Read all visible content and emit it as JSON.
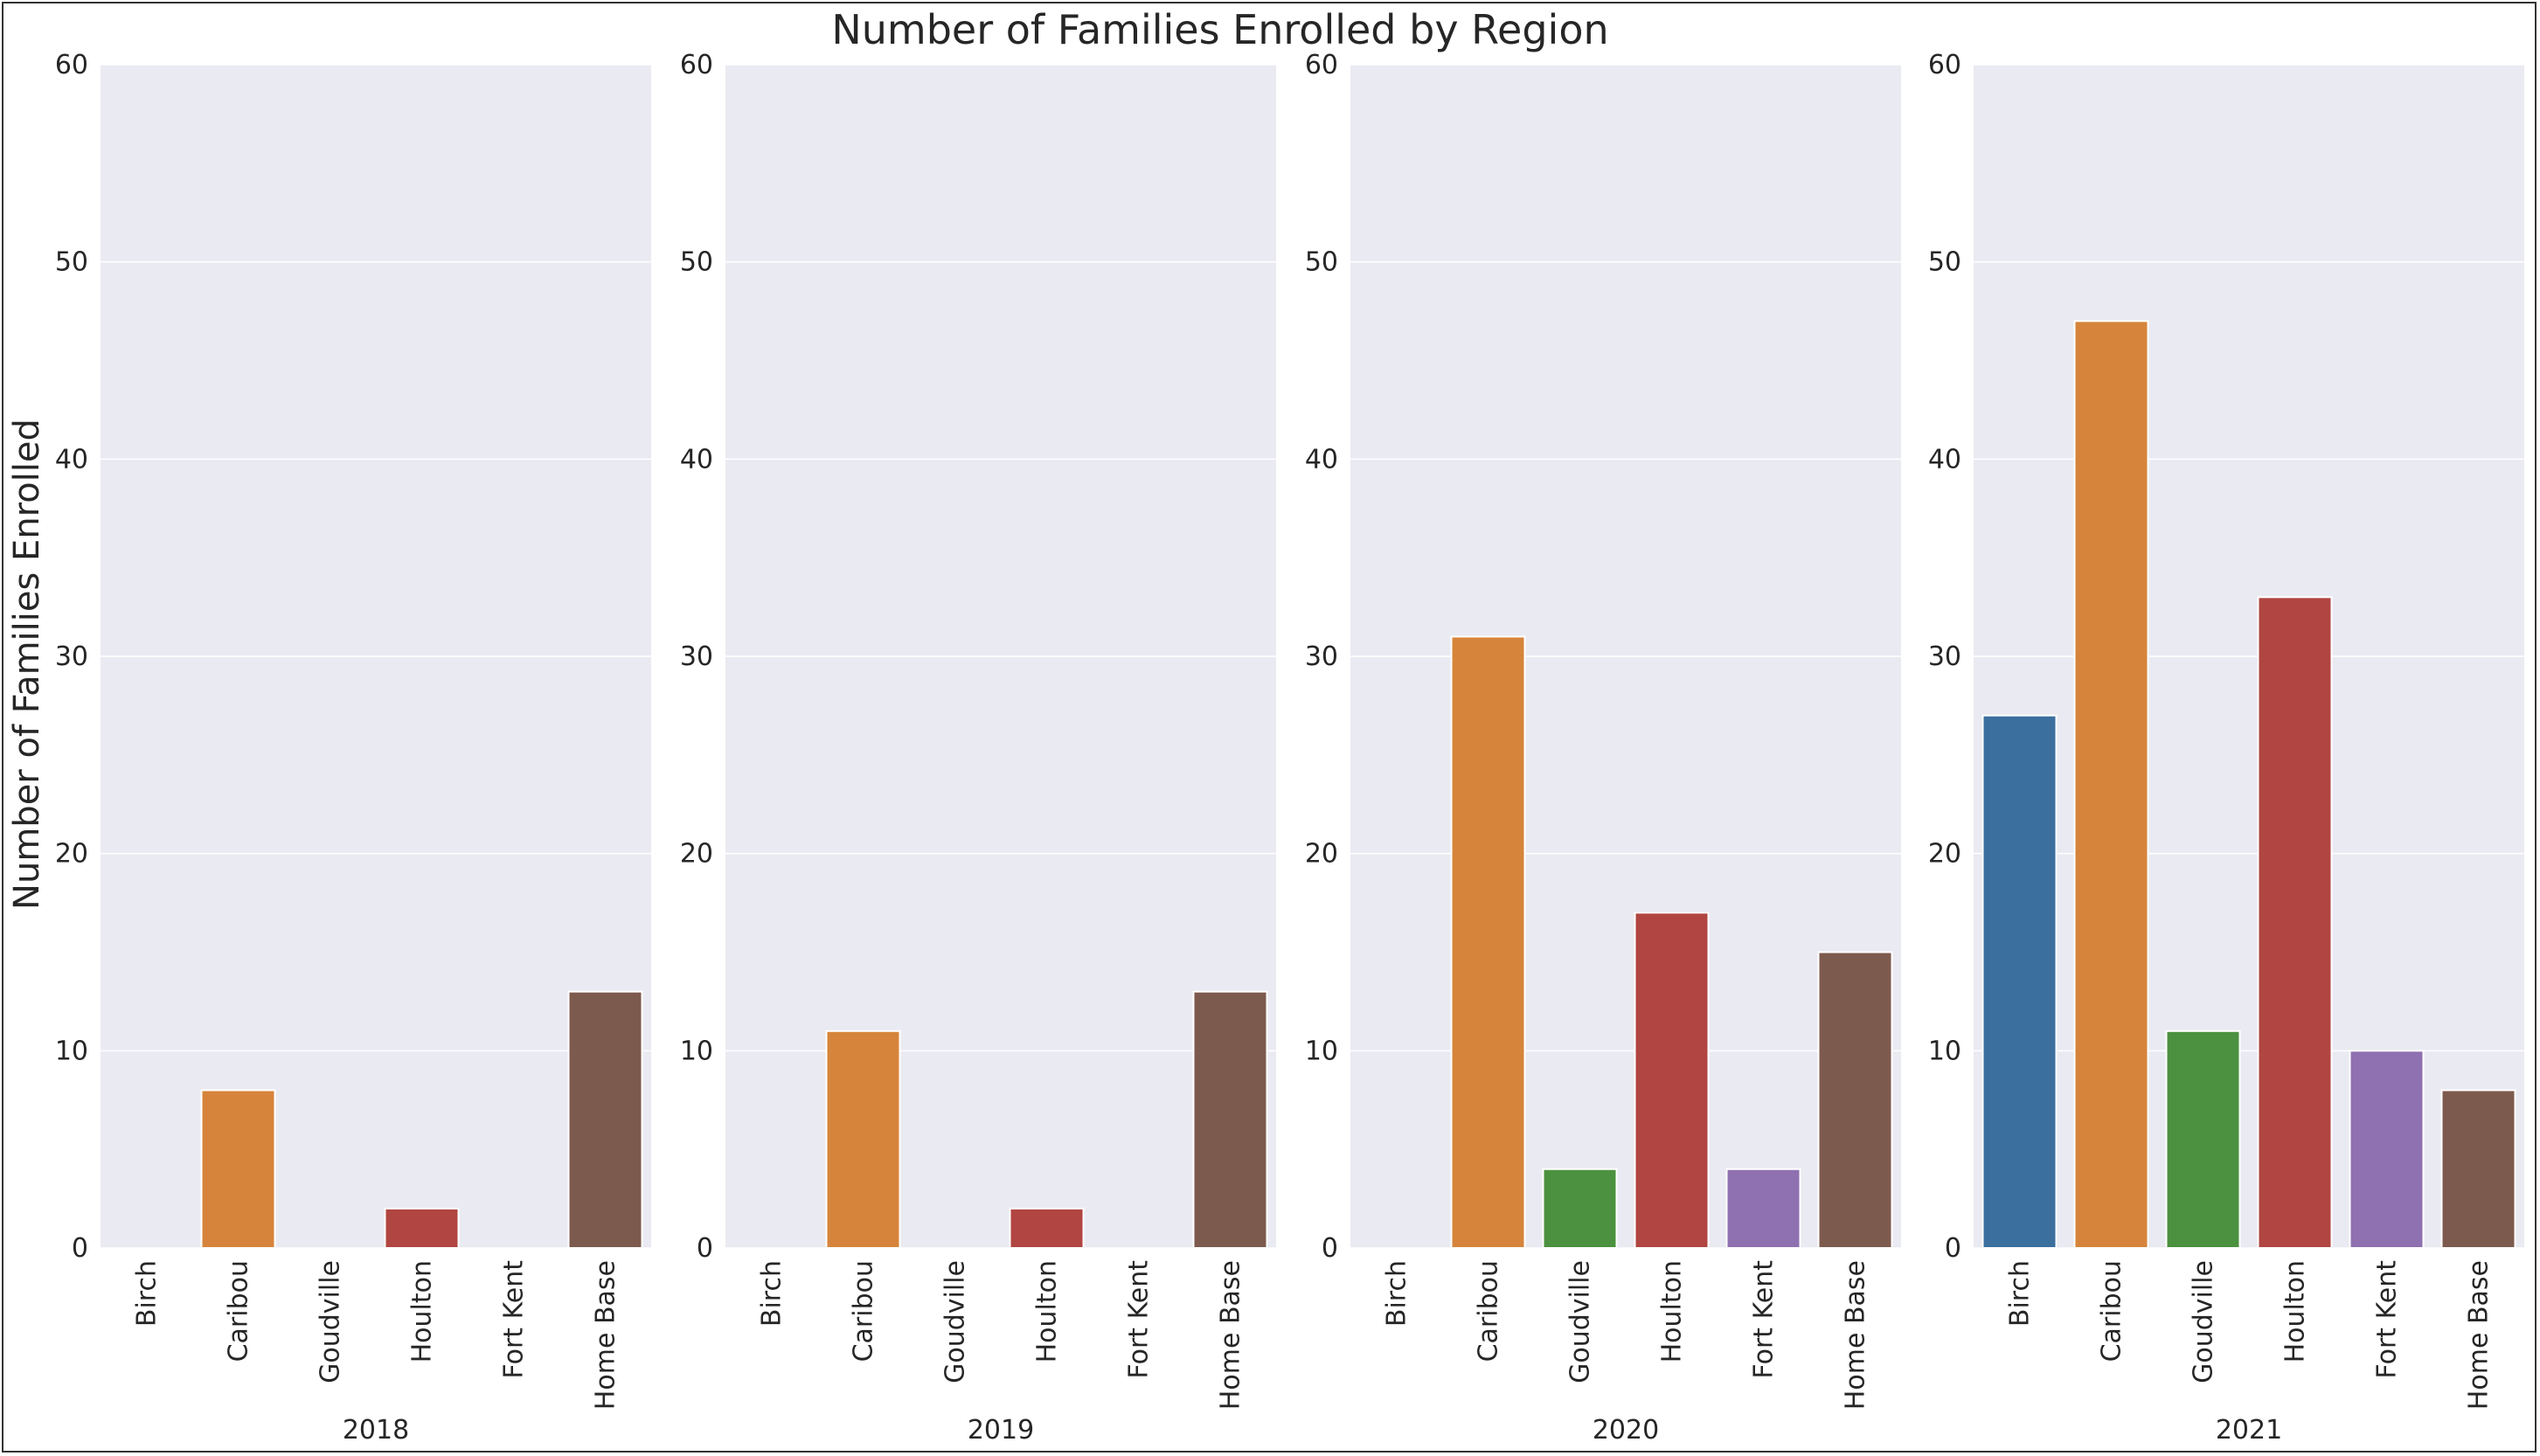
{
  "chart_data": {
    "type": "bar",
    "title": "Number of Families Enrolled by Region",
    "ylabel": "Number of Families Enrolled",
    "ylim": [
      0,
      60
    ],
    "yticks": [
      0,
      10,
      20,
      30,
      40,
      50,
      60
    ],
    "grid": true,
    "categories": [
      "Birch",
      "Caribou",
      "Goudville",
      "Houlton",
      "Fort Kent",
      "Home Base"
    ],
    "colors": [
      "#3b6f9e",
      "#d6843b",
      "#4b913f",
      "#b04541",
      "#8f70b0",
      "#7d5a4e"
    ],
    "panels": [
      {
        "xlabel": "2018",
        "values": [
          0,
          8,
          0,
          2,
          0,
          13
        ]
      },
      {
        "xlabel": "2019",
        "values": [
          0,
          11,
          0,
          2,
          0,
          13
        ]
      },
      {
        "xlabel": "2020",
        "values": [
          0,
          31,
          4,
          17,
          4,
          15
        ]
      },
      {
        "xlabel": "2021",
        "values": [
          27,
          47,
          11,
          33,
          10,
          8
        ]
      }
    ]
  }
}
